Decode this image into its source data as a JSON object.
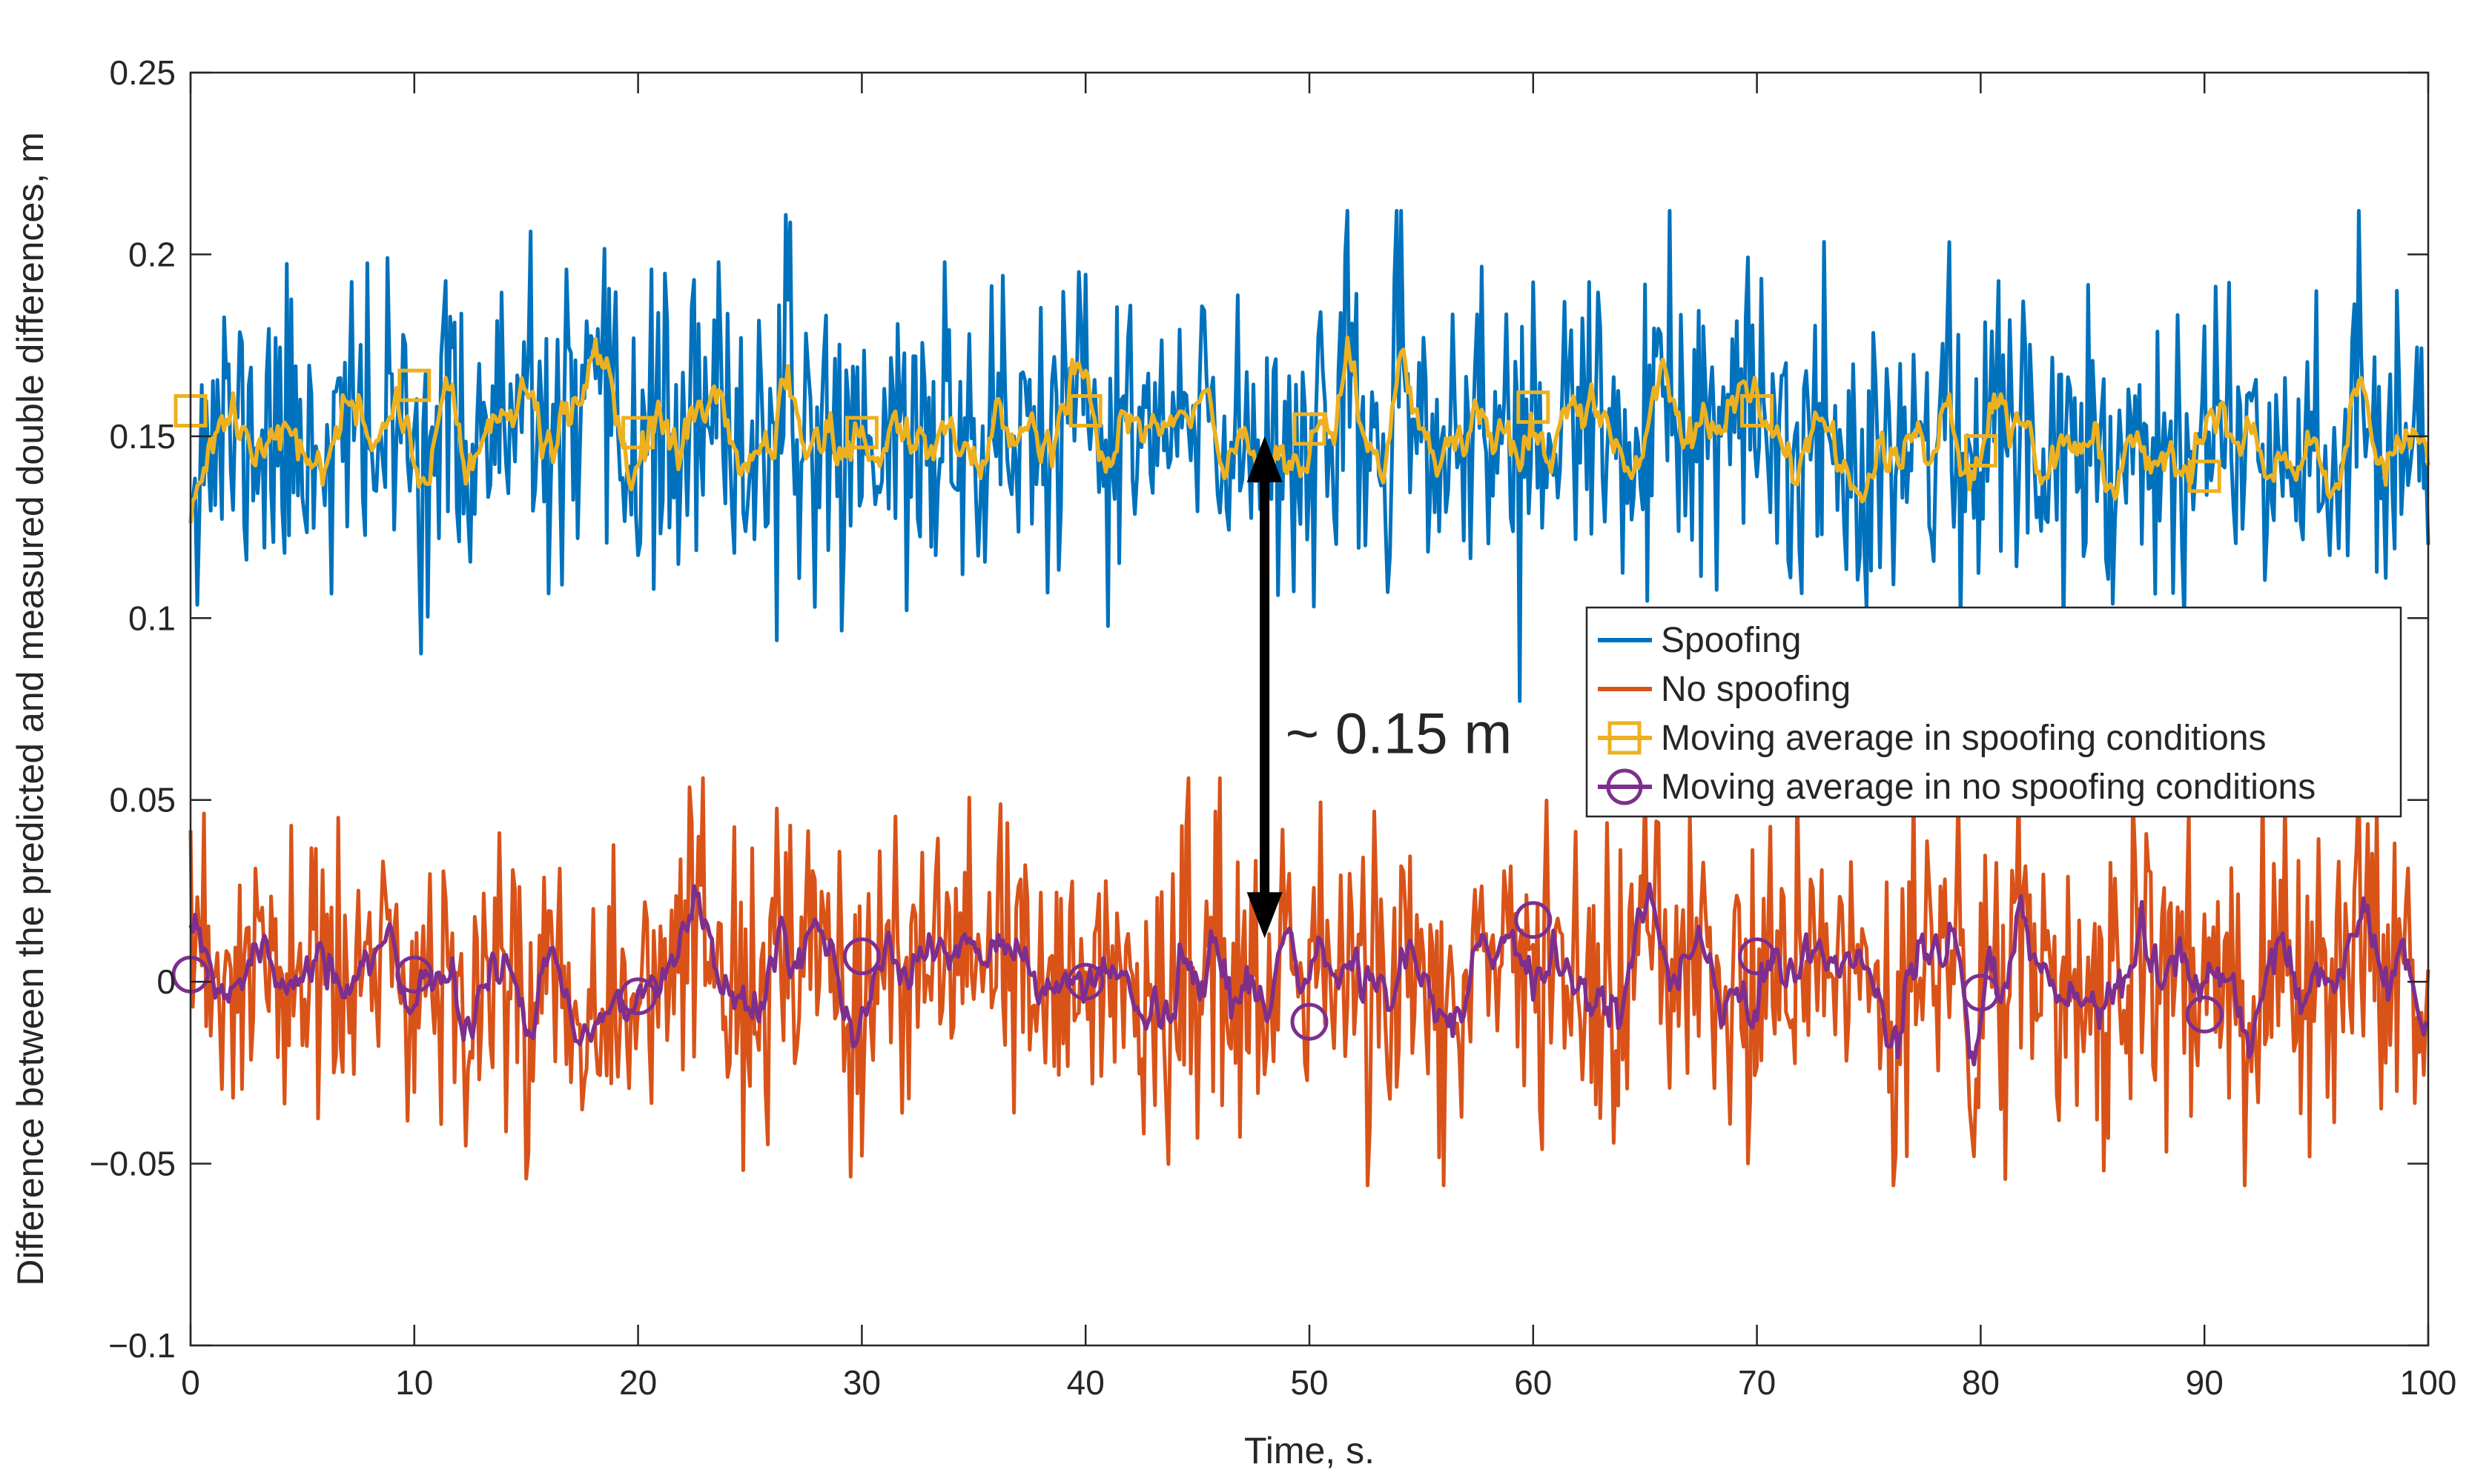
{
  "chart_data": {
    "type": "line",
    "title": "",
    "xlabel": "Time, s.",
    "ylabel": "Difference between the predicted and measured double differences, m",
    "xlim": [
      0,
      100
    ],
    "ylim": [
      -0.1,
      0.25
    ],
    "xticks": [
      0,
      10,
      20,
      30,
      40,
      50,
      60,
      70,
      80,
      90,
      100
    ],
    "xtick_labels": [
      "0",
      "10",
      "20",
      "30",
      "40",
      "50",
      "60",
      "70",
      "80",
      "90",
      "100"
    ],
    "yticks": [
      -0.1,
      -0.05,
      0,
      0.05,
      0.1,
      0.15,
      0.2,
      0.25
    ],
    "ytick_labels": [
      "−0.1",
      "−0.05",
      "0",
      "0.05",
      "0.1",
      "0.15",
      "0.2",
      "0.25"
    ],
    "grid": false,
    "legend_position": "right-middle",
    "sample_step_s": 0.1,
    "series": [
      {
        "name": "Spoofing",
        "color": "#0072BD",
        "marker": "none",
        "kind": "noise",
        "mean": 0.15,
        "std": 0.021,
        "min_observed": 0.075,
        "max_observed": 0.212,
        "seed": 11
      },
      {
        "name": "No spoofing",
        "color": "#D95319",
        "marker": "none",
        "kind": "noise",
        "mean": 0.0,
        "std": 0.021,
        "min_observed": -0.056,
        "max_observed": 0.056,
        "seed": 23
      },
      {
        "name": "Moving average in spoofing conditions",
        "color": "#EDB120",
        "marker": "square",
        "kind": "smooth",
        "base_seed": 11,
        "marker_x": [
          0,
          10,
          20,
          30,
          40,
          50,
          60,
          70,
          80,
          90
        ],
        "marker_y": [
          0.157,
          0.164,
          0.151,
          0.151,
          0.157,
          0.152,
          0.158,
          0.157,
          0.146,
          0.139
        ]
      },
      {
        "name": "Moving average in no spoofing conditions",
        "color": "#7E2F8E",
        "marker": "circle",
        "kind": "smooth",
        "base_seed": 23,
        "marker_x": [
          0,
          10,
          20,
          30,
          40,
          50,
          60,
          70,
          80,
          90
        ],
        "marker_y": [
          0.002,
          0.002,
          -0.004,
          0.007,
          0.0,
          -0.011,
          0.017,
          0.007,
          -0.003,
          -0.009
        ]
      }
    ],
    "annotations": [
      {
        "text": "~ 0.15 m",
        "type": "double-arrow",
        "x": 48,
        "y_from": 0.15,
        "y_to": 0.012,
        "text_y": 0.071
      }
    ]
  }
}
